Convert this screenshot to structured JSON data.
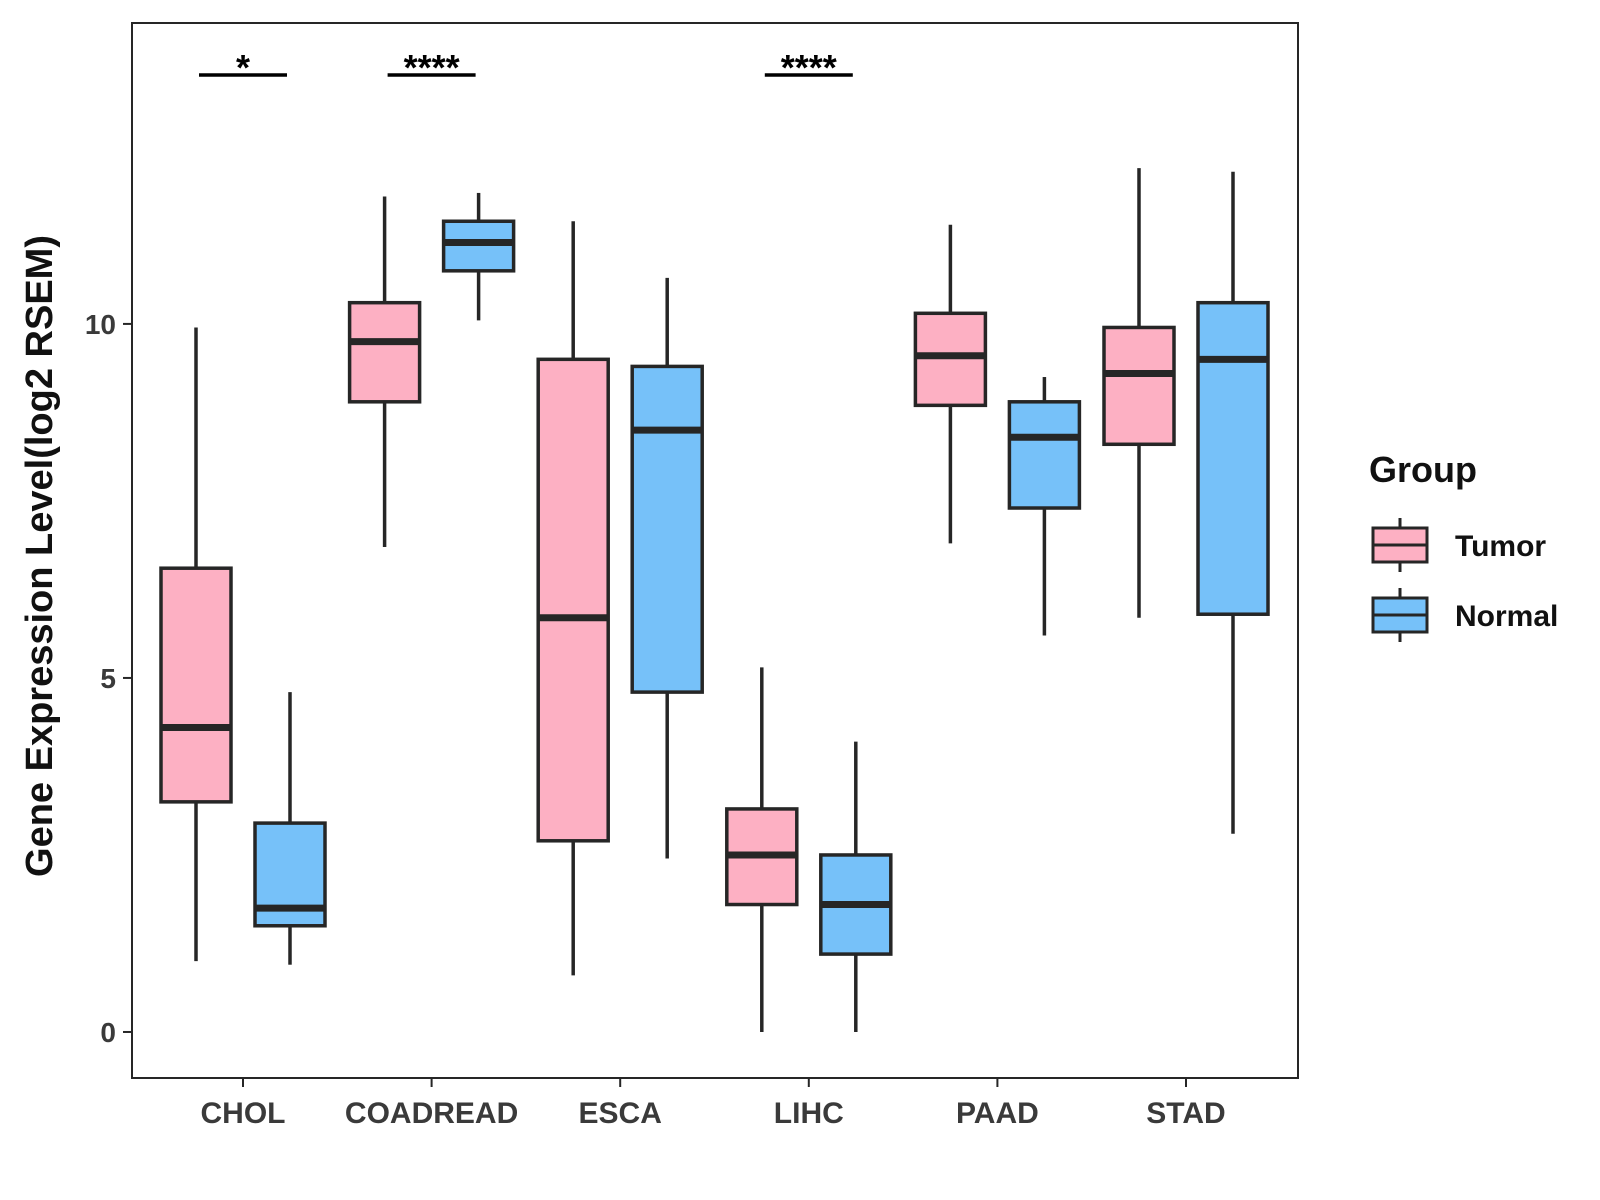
{
  "chart_data": {
    "type": "boxplot",
    "title": "",
    "xlabel": "",
    "ylabel": "Gene Expression Level(log2 RSEM)",
    "ylim": [
      -0.65,
      14.25
    ],
    "y_ticks": [
      0,
      5,
      10
    ],
    "categories": [
      "CHOL",
      "COADREAD",
      "ESCA",
      "LIHC",
      "PAAD",
      "STAD"
    ],
    "grid": false,
    "legend": {
      "title": "Group",
      "placement": "right",
      "entries": [
        "Tumor",
        "Normal"
      ]
    },
    "colors": {
      "Tumor": "#FDB0C3",
      "Normal": "#76C1F9",
      "outline": "#262626"
    },
    "series": [
      {
        "name": "Tumor",
        "boxes": [
          {
            "min": 1.0,
            "q1": 3.25,
            "median": 4.3,
            "q3": 6.55,
            "max": 9.95
          },
          {
            "min": 6.85,
            "q1": 8.9,
            "median": 9.75,
            "q3": 10.3,
            "max": 11.8
          },
          {
            "min": 0.8,
            "q1": 2.7,
            "median": 5.85,
            "q3": 9.5,
            "max": 11.45
          },
          {
            "min": 0.0,
            "q1": 1.8,
            "median": 2.5,
            "q3": 3.15,
            "max": 5.15
          },
          {
            "min": 6.9,
            "q1": 8.85,
            "median": 9.55,
            "q3": 10.15,
            "max": 11.4
          },
          {
            "min": 5.85,
            "q1": 8.3,
            "median": 9.3,
            "q3": 9.95,
            "max": 12.2
          }
        ]
      },
      {
        "name": "Normal",
        "boxes": [
          {
            "min": 0.95,
            "q1": 1.5,
            "median": 1.75,
            "q3": 2.95,
            "max": 4.8
          },
          {
            "min": 10.05,
            "q1": 10.75,
            "median": 11.15,
            "q3": 11.45,
            "max": 11.85
          },
          {
            "min": 2.45,
            "q1": 4.8,
            "median": 8.5,
            "q3": 9.4,
            "max": 10.65
          },
          {
            "min": 0.0,
            "q1": 1.1,
            "median": 1.8,
            "q3": 2.5,
            "max": 4.1
          },
          {
            "min": 5.6,
            "q1": 7.4,
            "median": 8.4,
            "q3": 8.9,
            "max": 9.25
          },
          {
            "min": 2.8,
            "q1": 5.9,
            "median": 9.5,
            "q3": 10.3,
            "max": 12.15
          }
        ]
      }
    ],
    "significance": [
      {
        "category": "CHOL",
        "label": "*"
      },
      {
        "category": "COADREAD",
        "label": "****"
      },
      {
        "category": "LIHC",
        "label": "****"
      }
    ]
  }
}
